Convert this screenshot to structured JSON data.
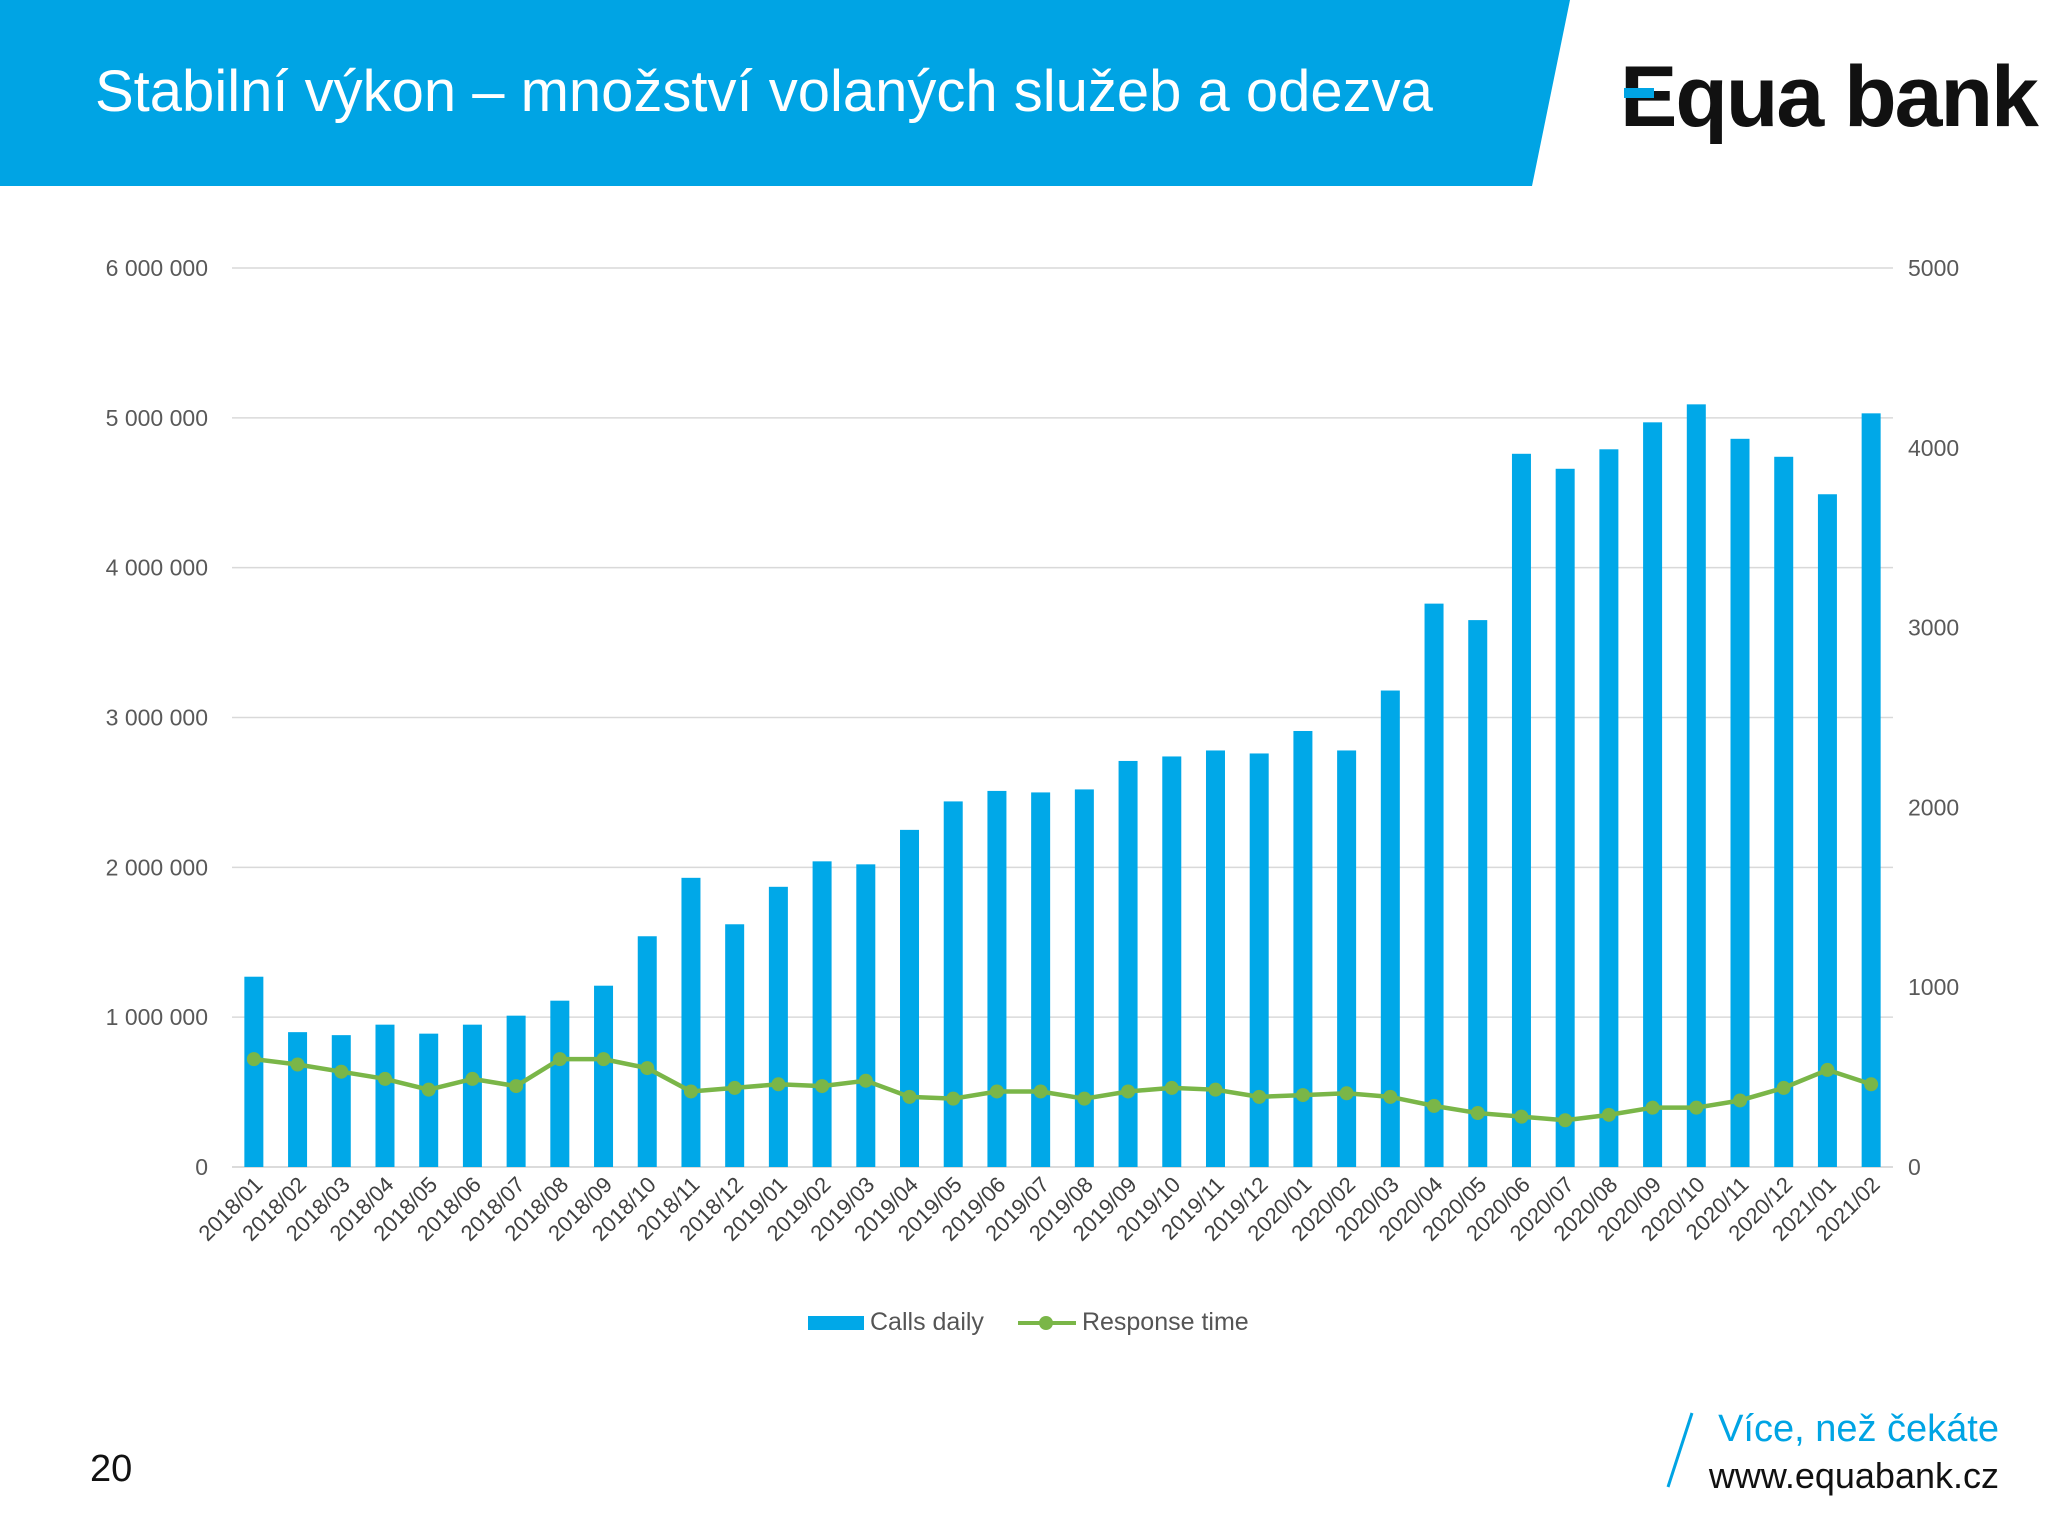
{
  "header": {
    "title": "Stabilní výkon – množství volaných služeb a odezva",
    "logo_text": "Equa bank",
    "band_color": "#00a4e4"
  },
  "chart_data": {
    "type": "bar",
    "title": "",
    "categories": [
      "2018/01",
      "2018/02",
      "2018/03",
      "2018/04",
      "2018/05",
      "2018/06",
      "2018/07",
      "2018/08",
      "2018/09",
      "2018/10",
      "2018/11",
      "2018/12",
      "2019/01",
      "2019/02",
      "2019/03",
      "2019/04",
      "2019/05",
      "2019/06",
      "2019/07",
      "2019/08",
      "2019/09",
      "2019/10",
      "2019/11",
      "2019/12",
      "2020/01",
      "2020/02",
      "2020/03",
      "2020/04",
      "2020/05",
      "2020/06",
      "2020/07",
      "2020/08",
      "2020/09",
      "2020/10",
      "2020/11",
      "2020/12",
      "2021/01",
      "2021/02"
    ],
    "series": [
      {
        "name": "Calls daily",
        "type": "bar",
        "axis": "left",
        "color": "#00a8e8",
        "values": [
          1270000,
          900000,
          880000,
          950000,
          890000,
          950000,
          1010000,
          1110000,
          1210000,
          1540000,
          1930000,
          1620000,
          1870000,
          2040000,
          2020000,
          2250000,
          2440000,
          2510000,
          2500000,
          2520000,
          2710000,
          2740000,
          2780000,
          2760000,
          2910000,
          2780000,
          3180000,
          3760000,
          3650000,
          4760000,
          4660000,
          4790000,
          4970000,
          5090000,
          4860000,
          4740000,
          4490000,
          5030000
        ]
      },
      {
        "name": "Response time",
        "type": "line",
        "axis": "right",
        "color": "#7ab648",
        "values": [
          600,
          570,
          530,
          490,
          430,
          490,
          450,
          600,
          600,
          550,
          420,
          440,
          460,
          450,
          480,
          390,
          380,
          420,
          420,
          380,
          420,
          440,
          430,
          390,
          400,
          410,
          390,
          340,
          300,
          280,
          260,
          290,
          330,
          330,
          370,
          440,
          540,
          460
        ]
      }
    ],
    "left_axis": {
      "ylim": [
        0,
        6000000
      ],
      "ticks": [
        0,
        1000000,
        2000000,
        3000000,
        4000000,
        5000000,
        6000000
      ],
      "tick_labels": [
        "0",
        "1 000 000",
        "2 000 000",
        "3 000 000",
        "4 000 000",
        "5 000 000",
        "6 000 000"
      ]
    },
    "right_axis": {
      "ylim": [
        0,
        5000
      ],
      "ticks": [
        0,
        1000,
        2000,
        3000,
        4000,
        5000
      ],
      "tick_labels": [
        "0",
        "1000",
        "2000",
        "3000",
        "4000",
        "5000"
      ]
    },
    "grid": true,
    "legend_position": "bottom"
  },
  "footer": {
    "page_number": "20",
    "slogan": "Více, než čekáte",
    "website": "www.equabank.cz"
  }
}
